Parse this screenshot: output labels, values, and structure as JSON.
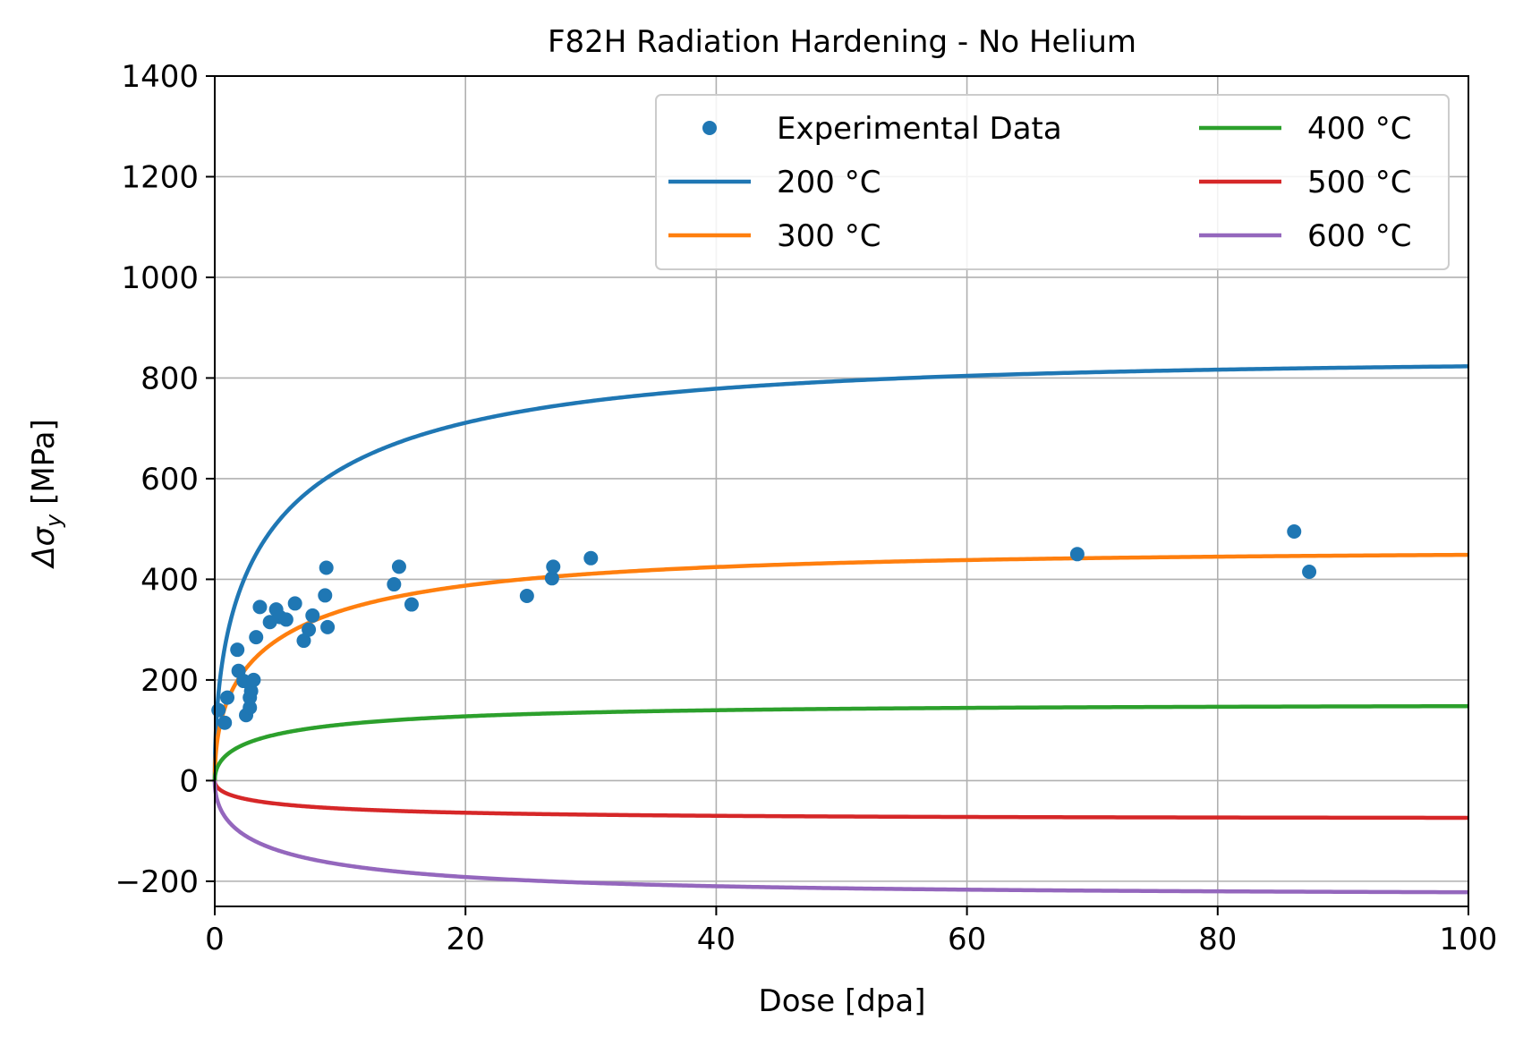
{
  "chart_data": {
    "type": "line",
    "title": "F82H Radiation Hardening - No Helium",
    "xlabel": "Dose [dpa]",
    "ylabel_prefix": "Δσ",
    "ylabel_subscript": "y",
    "ylabel_suffix": " [MPa]",
    "xlim": [
      0,
      100
    ],
    "ylim": [
      -250,
      1400
    ],
    "xticks": [
      0,
      20,
      40,
      60,
      80,
      100
    ],
    "xtick_labels": [
      "0",
      "20",
      "40",
      "60",
      "80",
      "100"
    ],
    "yticks": [
      -200,
      0,
      200,
      400,
      600,
      800,
      1000,
      1200,
      1400
    ],
    "ytick_labels": [
      "−200",
      "0",
      "200",
      "400",
      "600",
      "800",
      "1000",
      "1200",
      "1400"
    ],
    "grid": true,
    "legend": {
      "placement": "top-right",
      "columns": 2,
      "entries": [
        "Experimental Data",
        "200 °C",
        "300 °C",
        "400 °C",
        "500 °C",
        "600 °C"
      ]
    },
    "scatter": {
      "name": "Experimental Data",
      "color": "#1f77b4",
      "points": [
        [
          0.3,
          140
        ],
        [
          0.8,
          115
        ],
        [
          1.0,
          165
        ],
        [
          1.8,
          260
        ],
        [
          1.9,
          218
        ],
        [
          2.3,
          198
        ],
        [
          2.5,
          130
        ],
        [
          2.8,
          145
        ],
        [
          2.8,
          165
        ],
        [
          2.9,
          178
        ],
        [
          3.1,
          200
        ],
        [
          3.3,
          285
        ],
        [
          3.6,
          345
        ],
        [
          4.4,
          315
        ],
        [
          4.9,
          340
        ],
        [
          5.2,
          325
        ],
        [
          5.7,
          320
        ],
        [
          6.4,
          352
        ],
        [
          7.1,
          278
        ],
        [
          7.5,
          300
        ],
        [
          7.8,
          328
        ],
        [
          8.8,
          368
        ],
        [
          8.9,
          423
        ],
        [
          9.0,
          305
        ],
        [
          14.3,
          390
        ],
        [
          14.7,
          425
        ],
        [
          15.7,
          350
        ],
        [
          24.9,
          367
        ],
        [
          26.9,
          402
        ],
        [
          27.0,
          425
        ],
        [
          30.0,
          442
        ],
        [
          68.8,
          450
        ],
        [
          86.1,
          495
        ],
        [
          87.3,
          415
        ]
      ]
    },
    "series": [
      {
        "name": "200 °C",
        "color": "#1f77b4",
        "saturation": 835,
        "tau": 5.5
      },
      {
        "name": "300 °C",
        "color": "#ff7f0e",
        "saturation": 455,
        "tau": 5.5
      },
      {
        "name": "400 °C",
        "color": "#2ca02c",
        "saturation": 150,
        "tau": 5.5
      },
      {
        "name": "500 °C",
        "color": "#d62728",
        "saturation": -75,
        "tau": 5.5
      },
      {
        "name": "600 °C",
        "color": "#9467bd",
        "saturation": -225,
        "tau": 5.5
      }
    ]
  }
}
